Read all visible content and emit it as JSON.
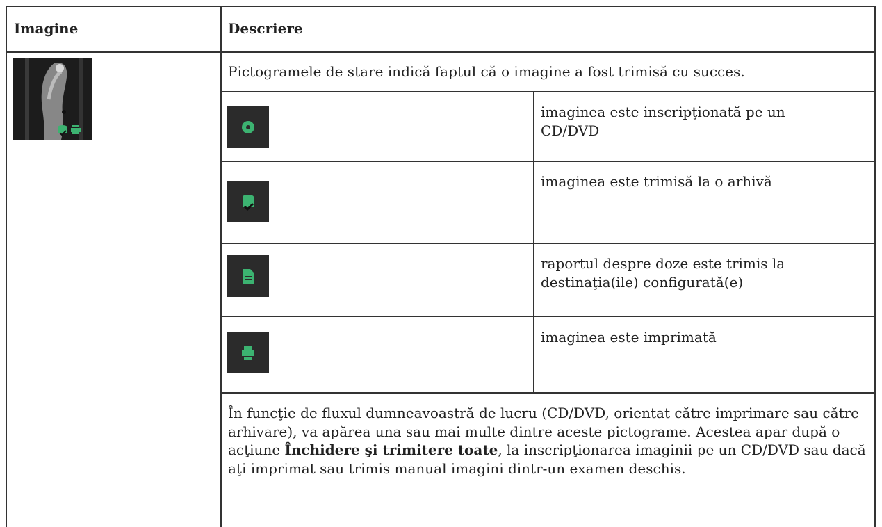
{
  "table": {
    "header": [
      "Imagine",
      "Descriere"
    ],
    "intro": "Pictogramele de stare indică faptul că o imagine a fost trimisă cu succes.",
    "icon_rows": [
      "imaginea este inscripţionată pe un CD/DVD",
      "imaginea este trimisă la o arhivă",
      "raportul despre doze este trimis la destinaţia(ile) configurată(e)",
      "imaginea este imprimată"
    ],
    "note": {
      "before": "În funcţie de fluxul dumneavoastră de lucru (CD/DVD, orientat către imprimare sau către arhivare), va apărea una sau mai multe dintre aceste pictograme. Acestea apar după o acţiune ",
      "bold": "Închidere şi trimitere toate",
      "after": ", la inscripţionarea imaginii pe un CD/DVD sau dacă aţi imprimat sau trimis manual imagini dintr-un examen deschis."
    }
  }
}
